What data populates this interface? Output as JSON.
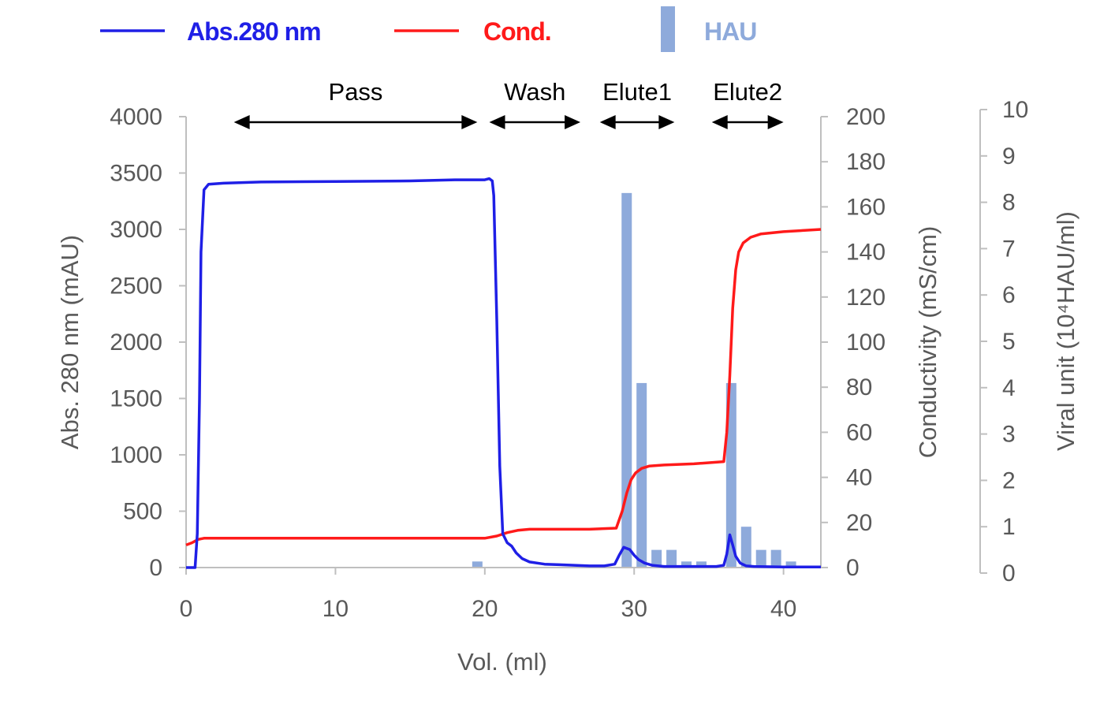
{
  "chart_data": {
    "type": "line",
    "colors": {
      "abs": "#1f1fe6",
      "cond": "#ff1a1a",
      "hau": "#8eaadb",
      "axis": "#bfbfbf",
      "arrows": "#000000"
    },
    "legend": {
      "placement": "top",
      "entries": [
        {
          "key": "abs",
          "label": "Abs.280 nm",
          "symbol": "line"
        },
        {
          "key": "cond",
          "label": "Cond.",
          "symbol": "line"
        },
        {
          "key": "hau",
          "label": "HAU",
          "symbol": "bar"
        }
      ]
    },
    "x_axis": {
      "label": "Vol. (ml)",
      "range": [
        0,
        42.5
      ],
      "ticks": [
        0,
        10,
        20,
        30,
        40
      ],
      "tick_labels": [
        "0",
        "10",
        "20",
        "30",
        "40"
      ]
    },
    "y_axis_left": {
      "label": "Abs. 280 nm (mAU)",
      "range": [
        0,
        4000
      ],
      "ticks": [
        0,
        500,
        1000,
        1500,
        2000,
        2500,
        3000,
        3500,
        4000
      ],
      "tick_labels": [
        "0",
        "500",
        "1000",
        "1500",
        "2000",
        "2500",
        "3000",
        "3500",
        "4000"
      ]
    },
    "y_axis_right": {
      "label": "Conductivity (mS/cm)",
      "range": [
        0,
        200
      ],
      "ticks": [
        0,
        20,
        40,
        60,
        80,
        100,
        120,
        140,
        160,
        180,
        200
      ],
      "tick_labels": [
        "0",
        "20",
        "40",
        "60",
        "80",
        "100",
        "120",
        "140",
        "160",
        "180",
        "200"
      ]
    },
    "y_axis_right2": {
      "label": "Viral unit (10⁴HAU/ml)",
      "range": [
        0,
        10
      ],
      "ticks": [
        0,
        1,
        2,
        3,
        4,
        5,
        6,
        7,
        8,
        9,
        10
      ],
      "tick_labels": [
        "0",
        "1",
        "2",
        "3",
        "4",
        "5",
        "6",
        "7",
        "8",
        "9",
        "10"
      ]
    },
    "phases": [
      {
        "label": "Pass",
        "start": 3.2,
        "end": 19.5
      },
      {
        "label": "Wash",
        "start": 20.3,
        "end": 26.4
      },
      {
        "label": "Elute1",
        "start": 27.7,
        "end": 32.7
      },
      {
        "label": "Elute2",
        "start": 35.2,
        "end": 40.0
      }
    ],
    "series": [
      {
        "key": "abs",
        "name": "Abs.280 nm",
        "axis": "left",
        "x": [
          0,
          0.6,
          0.75,
          0.9,
          1.0,
          1.2,
          1.5,
          2.5,
          5,
          10,
          15,
          18,
          19.5,
          20.0,
          20.3,
          20.5,
          20.6,
          20.8,
          21.0,
          21.2,
          21.5,
          21.8,
          22.1,
          22.5,
          23,
          24,
          25,
          26,
          27,
          28,
          28.7,
          29.0,
          29.3,
          29.7,
          30.0,
          30.3,
          30.7,
          31.2,
          32,
          34,
          35.5,
          36.0,
          36.2,
          36.4,
          36.6,
          36.8,
          37.1,
          37.5,
          38,
          40,
          42.5
        ],
        "y": [
          0,
          0,
          300,
          1500,
          2800,
          3350,
          3400,
          3410,
          3420,
          3425,
          3430,
          3440,
          3440,
          3440,
          3450,
          3430,
          3300,
          2200,
          900,
          300,
          220,
          190,
          130,
          80,
          50,
          30,
          25,
          20,
          15,
          15,
          30,
          110,
          180,
          160,
          110,
          70,
          40,
          20,
          10,
          10,
          10,
          20,
          120,
          290,
          200,
          100,
          40,
          15,
          10,
          5,
          5
        ]
      },
      {
        "key": "cond",
        "name": "Cond.",
        "axis": "right",
        "x": [
          0,
          0.4,
          0.8,
          1.2,
          3,
          10,
          20,
          20.8,
          21.5,
          22.2,
          23,
          25,
          27,
          28.8,
          29.2,
          29.5,
          29.8,
          30.1,
          30.5,
          31,
          32,
          34,
          36.0,
          36.2,
          36.4,
          36.6,
          36.8,
          37.0,
          37.3,
          37.8,
          38.5,
          40,
          42.5
        ],
        "y": [
          10,
          11,
          12.5,
          13,
          13,
          13,
          13,
          14,
          15.5,
          16.5,
          17,
          17,
          17,
          17.5,
          25,
          33,
          39,
          42,
          44,
          45,
          45.5,
          46,
          47,
          60,
          85,
          115,
          132,
          140,
          144,
          146.5,
          148,
          149,
          150
        ]
      },
      {
        "key": "hau",
        "name": "HAU",
        "axis": "right2",
        "type": "bar",
        "x": [
          17.5,
          18.5,
          19.5,
          20.5,
          21.5,
          29.5,
          30.5,
          31.5,
          32.5,
          33.5,
          34.5,
          36.5,
          37.5,
          38.5,
          39.5,
          40.5
        ],
        "y": [
          0.06,
          0.1,
          0.25,
          0.1,
          0.06,
          8.2,
          4.1,
          0.5,
          0.5,
          0.25,
          0.25,
          4.1,
          1.0,
          0.5,
          0.5,
          0.25
        ]
      }
    ]
  }
}
